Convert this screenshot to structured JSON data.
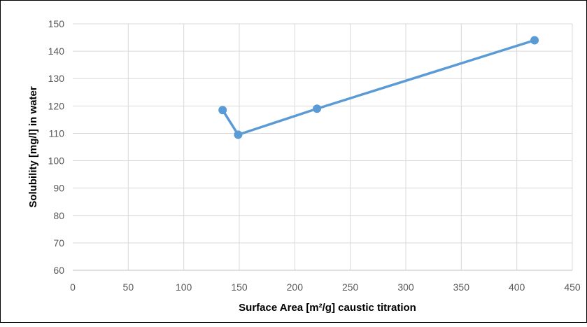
{
  "chart_data": {
    "type": "line",
    "title": "",
    "xlabel": "Surface Area [m²/g] caustic titration",
    "ylabel": "Solubility [mg/l] in water",
    "xlim": [
      0,
      450
    ],
    "ylim": [
      60,
      150
    ],
    "x_ticks": [
      "0",
      "50",
      "100",
      "150",
      "200",
      "250",
      "300",
      "350",
      "400",
      "450"
    ],
    "y_ticks": [
      "60",
      "70",
      "80",
      "90",
      "100",
      "110",
      "120",
      "130",
      "140",
      "150"
    ],
    "grid": true,
    "legend": "none",
    "series": [
      {
        "color": "#5B9BD5",
        "x": [
          135,
          149,
          220,
          416
        ],
        "y": [
          118.5,
          109.5,
          119,
          144
        ]
      }
    ]
  }
}
